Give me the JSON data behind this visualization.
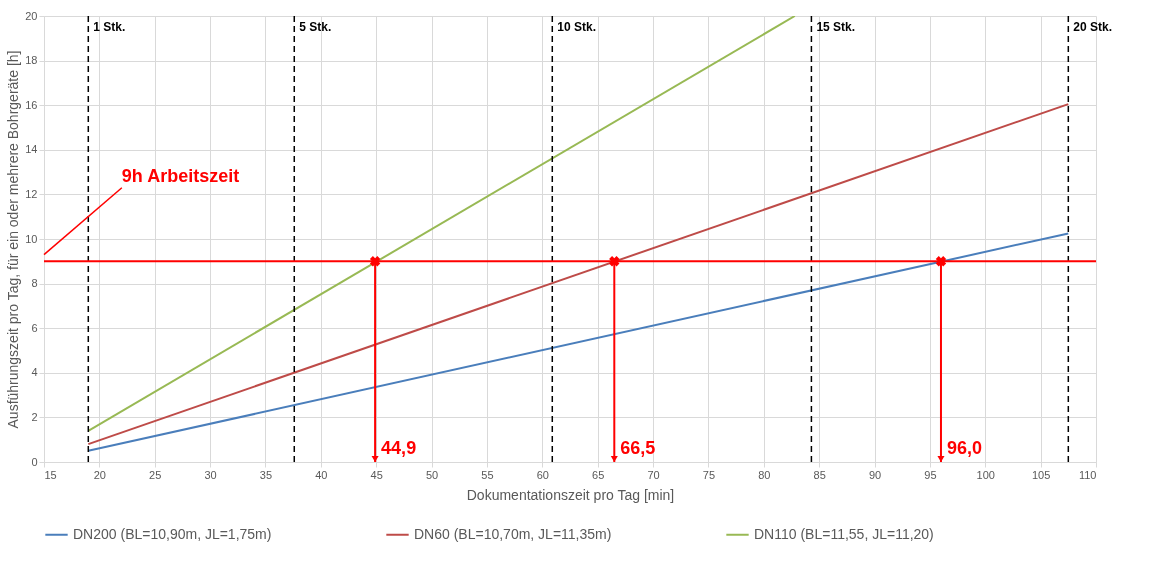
{
  "chart_data": {
    "type": "line",
    "xlabel": "Dokumentationszeit pro Tag [min]",
    "ylabel": "Ausführungszeit pro Tag, für ein oder mehrere Bohrgeräte  [h]",
    "series": [
      {
        "name": "DN200 (BL=10,90m, JL=1,75m)",
        "color": "#4a7ebb",
        "x": [
          19,
          107.5
        ],
        "values": [
          0.5,
          10.25
        ]
      },
      {
        "name": "DN60 (BL=10,70m, JL=11,35m)",
        "color": "#be4b48",
        "x": [
          19,
          107.5
        ],
        "values": [
          0.8,
          16.05
        ]
      },
      {
        "name": "DN110 (BL=11,55, JL=11,20)",
        "color": "#98b954",
        "x": [
          19,
          82.8
        ],
        "values": [
          1.4,
          20
        ]
      }
    ],
    "xlim": [
      15,
      110
    ],
    "xticks": [
      15,
      20,
      25,
      30,
      35,
      40,
      45,
      50,
      55,
      60,
      65,
      70,
      75,
      80,
      85,
      90,
      95,
      100,
      105,
      110
    ],
    "ylim": [
      0,
      20
    ],
    "yticks": [
      0,
      2,
      4,
      6,
      8,
      10,
      12,
      14,
      16,
      18,
      20
    ],
    "ref_lines": [
      {
        "axis": "y",
        "value": 9,
        "label": "9h Arbeitszeit",
        "color": "#ff0000",
        "line_style": "solid"
      },
      {
        "axis": "x",
        "value": 19,
        "label": "1 Stk.",
        "color": "#000000",
        "line_style": "dashed"
      },
      {
        "axis": "x",
        "value": 37.6,
        "label": "5 Stk.",
        "color": "#000000",
        "line_style": "dashed"
      },
      {
        "axis": "x",
        "value": 60.9,
        "label": "10 Stk.",
        "color": "#000000",
        "line_style": "dashed"
      },
      {
        "axis": "x",
        "value": 84.3,
        "label": "15 Stk.",
        "color": "#000000",
        "line_style": "dashed"
      },
      {
        "axis": "x",
        "value": 107.5,
        "label": "20 Stk.",
        "color": "#000000",
        "line_style": "dashed"
      }
    ],
    "annotations": [
      {
        "text": "44,9",
        "x": 44.9,
        "y": 9
      },
      {
        "text": "66,5",
        "x": 66.5,
        "y": 9
      },
      {
        "text": "96,0",
        "x": 96.0,
        "y": 9
      }
    ],
    "grid": true,
    "legend": "bottom"
  }
}
